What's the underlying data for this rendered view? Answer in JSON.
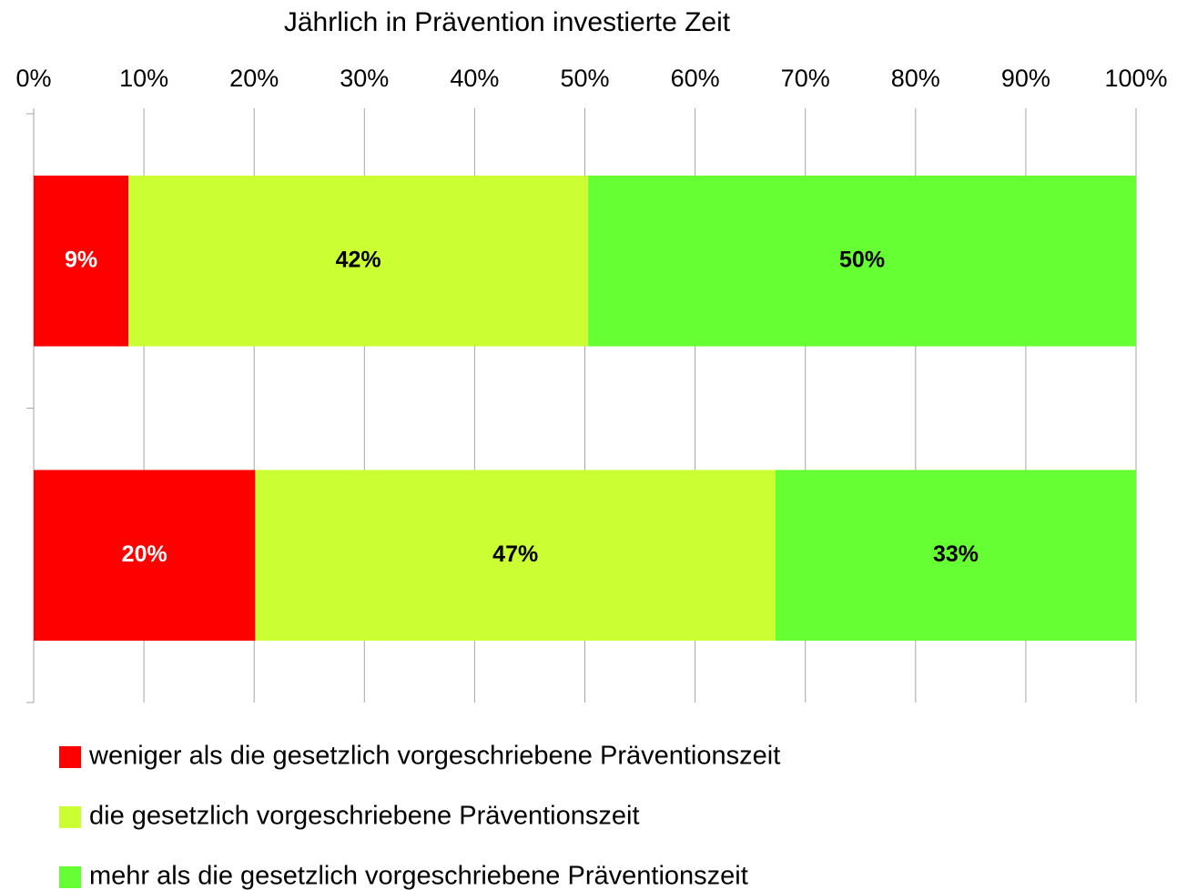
{
  "chart_data": {
    "type": "stacked-barh",
    "title": "Jährlich in Prävention investierte Zeit",
    "categories": [
      null,
      null
    ],
    "series": [
      {
        "name": "weniger als die gesetzlich vorgeschriebene Präventionszeit",
        "color": "#ff0000",
        "label_color": "#ffffff",
        "values": [
          8.6,
          20.1
        ],
        "value_labels": [
          "9%",
          "20%"
        ]
      },
      {
        "name": "die gesetzlich vorgeschriebene Präventionszeit",
        "color": "#ccff33",
        "label_color": "#000000",
        "values": [
          41.7,
          47.2
        ],
        "value_labels": [
          "42%",
          "47%"
        ]
      },
      {
        "name": "mehr als die gesetzlich vorgeschriebene Präventionszeit",
        "color": "#66ff33",
        "label_color": "#000000",
        "values": [
          49.7,
          32.7
        ],
        "value_labels": [
          "50%",
          "33%"
        ]
      }
    ],
    "xlim": [
      0,
      100
    ],
    "xticks": [
      {
        "value": 0,
        "label": "0%"
      },
      {
        "value": 10,
        "label": "10%"
      },
      {
        "value": 20,
        "label": "20%"
      },
      {
        "value": 30,
        "label": "30%"
      },
      {
        "value": 40,
        "label": "40%"
      },
      {
        "value": 50,
        "label": "50%"
      },
      {
        "value": 60,
        "label": "60%"
      },
      {
        "value": 70,
        "label": "70%"
      },
      {
        "value": 80,
        "label": "80%"
      },
      {
        "value": 90,
        "label": "90%"
      },
      {
        "value": 100,
        "label": "100%"
      }
    ],
    "grid": true,
    "legend": "bottom"
  }
}
